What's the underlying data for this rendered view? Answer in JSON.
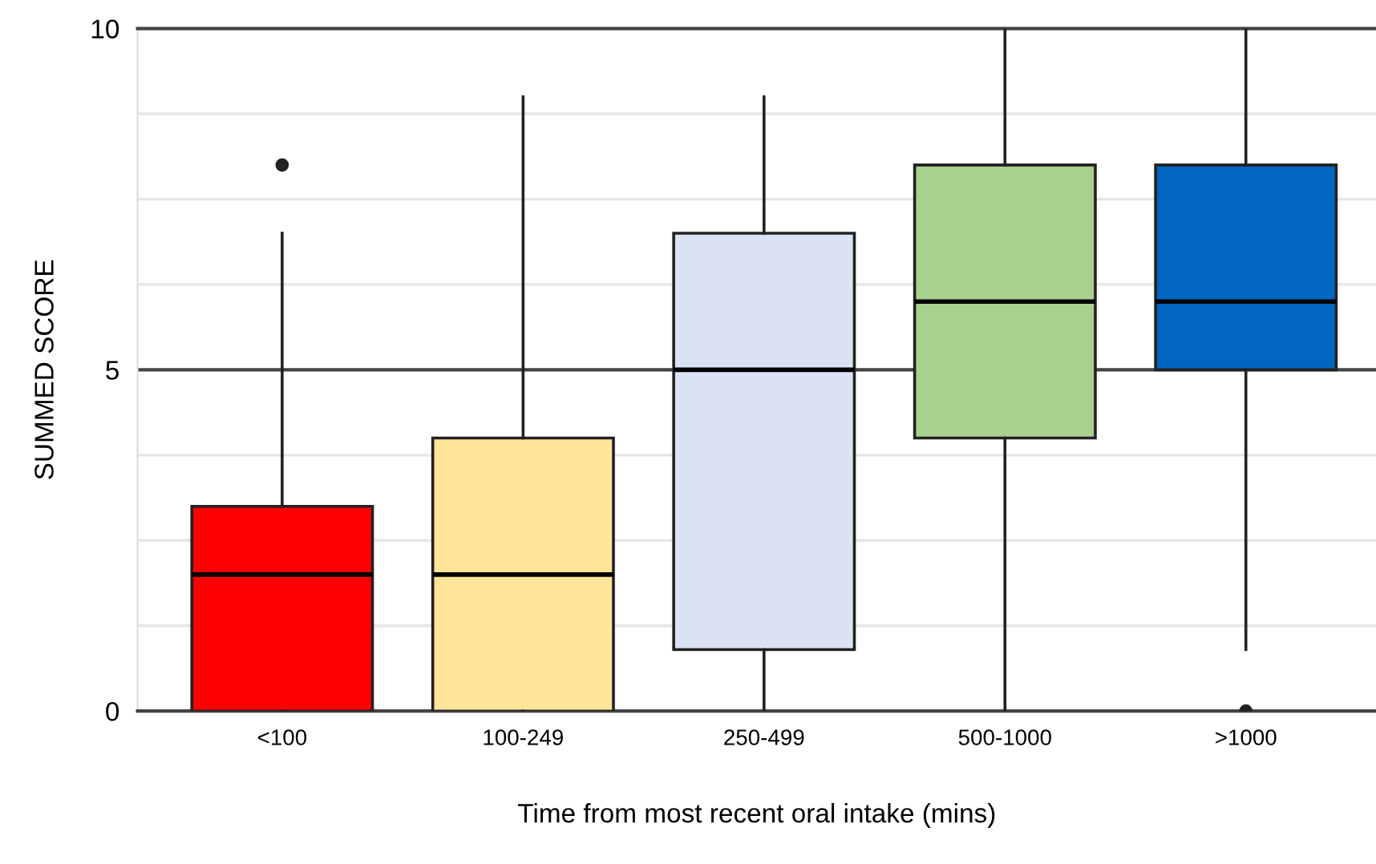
{
  "chart_data": {
    "type": "box",
    "xlabel": "Time from most recent oral intake (mins)",
    "ylabel": "SUMMED SCORE",
    "categories": [
      "<100",
      "100-249",
      "250-499",
      "500-1000",
      ">1000"
    ],
    "colors": [
      "#ff0000",
      "#ffe599",
      "#dae3f3",
      "#a9d18e",
      "#0066c0"
    ],
    "boxes": [
      {
        "low": 0,
        "q1": 0,
        "median": 2,
        "q3": 3,
        "high": 7,
        "outliers": [
          8
        ]
      },
      {
        "low": 0,
        "q1": 0,
        "median": 2,
        "q3": 4,
        "high": 9
      },
      {
        "low": 0,
        "q1": 0.9,
        "median": 5,
        "q3": 7,
        "high": 9
      },
      {
        "low": 0,
        "q1": 4,
        "median": 6,
        "q3": 8,
        "high": 10
      },
      {
        "low": 0.9,
        "q1": 5,
        "median": 6,
        "q3": 8,
        "high": 10,
        "outliers": [
          0
        ]
      }
    ],
    "ylim": [
      0,
      10
    ],
    "yticks": [
      0,
      {
        "value": 1.25,
        "label": null
      },
      {
        "value": 2.5,
        "label": null
      },
      {
        "value": 3.75,
        "label": null
      },
      5,
      {
        "value": 6.25,
        "label": null
      },
      {
        "value": 7.5,
        "label": null
      },
      {
        "value": 8.75,
        "label": null
      },
      10
    ],
    "ref_lines": [
      {
        "axis": "y",
        "value": 5,
        "color": "#444444"
      }
    ],
    "grid": "y"
  }
}
